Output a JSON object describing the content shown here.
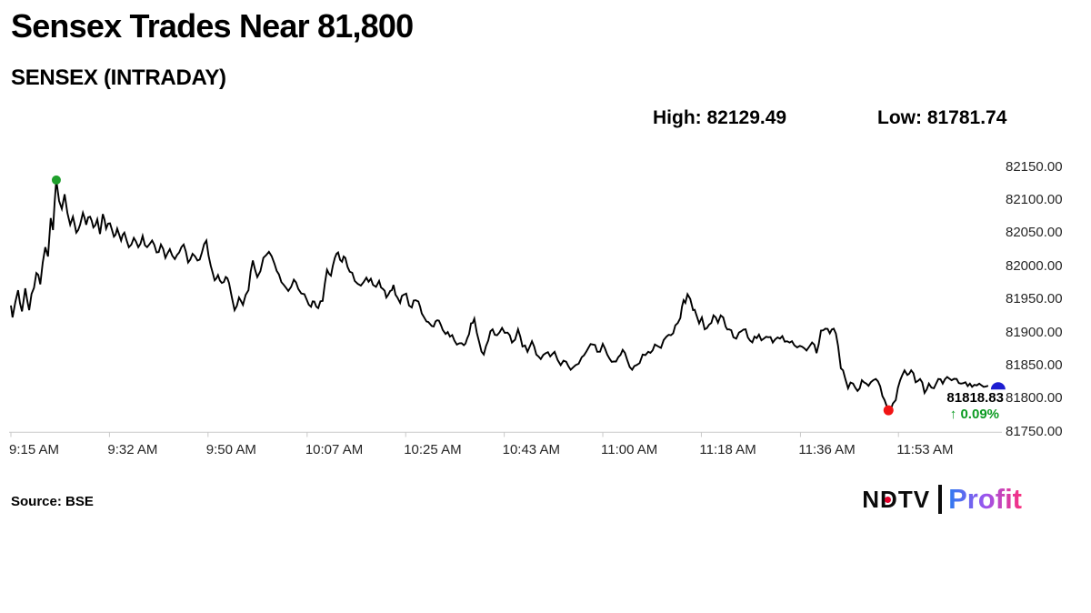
{
  "title": "Sensex Trades Near 81,800",
  "subtitle": "SENSEX (INTRADAY)",
  "stats": {
    "high_label": "High:",
    "high_value": "82129.49",
    "low_label": "Low:",
    "low_value": "81781.74"
  },
  "chart_data": {
    "type": "line",
    "title": "SENSEX (INTRADAY)",
    "series_name": "SENSEX",
    "line_color": "#000000",
    "axis_color": "#c9c9c9",
    "grid": false,
    "x_axis": {
      "ticks": [
        "9:15 AM",
        "9:32 AM",
        "9:50 AM",
        "10:07 AM",
        "10:25 AM",
        "10:43 AM",
        "11:00 AM",
        "11:18 AM",
        "11:36 AM",
        "11:53 AM"
      ],
      "tick_minutes": [
        0,
        17.8,
        35.6,
        53.5,
        71.3,
        89.1,
        106.9,
        124.7,
        142.6,
        160.3
      ],
      "minutes_domain": [
        0,
        176.5
      ]
    },
    "y_axis": {
      "ticks": [
        82150,
        82100,
        82050,
        82000,
        81950,
        81900,
        81850,
        81800,
        81750
      ],
      "min": 81750,
      "max": 82150,
      "decimals": 2
    },
    "high": {
      "value": 82129.49,
      "minute": 8.2
    },
    "low": {
      "value": 81781.74,
      "minute": 158.5
    },
    "last": {
      "value": 81818.83,
      "minute": 176.5,
      "label": "81818.83",
      "change": "↑ 0.09%"
    },
    "marker_colors": {
      "high": "#1fa02c",
      "low": "#f11414",
      "last": "#1d1dd1"
    },
    "change_color": "#0c9b22",
    "points": [
      [
        0,
        81940
      ],
      [
        0.3,
        81922
      ],
      [
        1.3,
        81963
      ],
      [
        2,
        81931
      ],
      [
        2.6,
        81966
      ],
      [
        3.3,
        81933
      ],
      [
        4.6,
        81989
      ],
      [
        5.3,
        81972
      ],
      [
        6.2,
        82028
      ],
      [
        6.7,
        82014
      ],
      [
        7.2,
        82072
      ],
      [
        7.6,
        82054
      ],
      [
        7.9,
        82096
      ],
      [
        8.2,
        82129.49
      ],
      [
        8.7,
        82098
      ],
      [
        9.2,
        82086
      ],
      [
        9.7,
        82108
      ],
      [
        10.2,
        82080
      ],
      [
        10.7,
        82062
      ],
      [
        11.2,
        82074
      ],
      [
        11.8,
        82050
      ],
      [
        12.5,
        82062
      ],
      [
        13,
        82080
      ],
      [
        13.6,
        82062
      ],
      [
        14.3,
        82074
      ],
      [
        14.9,
        82058
      ],
      [
        15.6,
        82070
      ],
      [
        16.1,
        82048
      ],
      [
        16.6,
        82078
      ],
      [
        17.2,
        82056
      ],
      [
        17.9,
        82064
      ],
      [
        18.6,
        82044
      ],
      [
        19.2,
        82056
      ],
      [
        19.9,
        82038
      ],
      [
        20.5,
        82050
      ],
      [
        21.3,
        82028
      ],
      [
        22.2,
        82042
      ],
      [
        23,
        82028
      ],
      [
        23.8,
        82045
      ],
      [
        24.6,
        82028
      ],
      [
        25.5,
        82038
      ],
      [
        26.3,
        82020
      ],
      [
        27.1,
        82032
      ],
      [
        27.9,
        82012
      ],
      [
        28.7,
        82025
      ],
      [
        29.6,
        82010
      ],
      [
        30.4,
        82020
      ],
      [
        31.2,
        82032
      ],
      [
        32,
        82005
      ],
      [
        32.8,
        82018
      ],
      [
        33.7,
        82008
      ],
      [
        34.5,
        82020
      ],
      [
        35.3,
        82038
      ],
      [
        36.1,
        82000
      ],
      [
        36.8,
        81978
      ],
      [
        37.4,
        81986
      ],
      [
        38.1,
        81974
      ],
      [
        38.8,
        81983
      ],
      [
        39.4,
        81974
      ],
      [
        40.4,
        81933
      ],
      [
        41.2,
        81952
      ],
      [
        41.9,
        81941
      ],
      [
        42.9,
        81963
      ],
      [
        43.7,
        82008
      ],
      [
        44.5,
        81983
      ],
      [
        45.6,
        82012
      ],
      [
        46.6,
        82021
      ],
      [
        47.6,
        82003
      ],
      [
        48.4,
        81987
      ],
      [
        49.3,
        81971
      ],
      [
        50.1,
        81962
      ],
      [
        51.1,
        81979
      ],
      [
        51.9,
        81965
      ],
      [
        53,
        81957
      ],
      [
        54.2,
        81938
      ],
      [
        54.8,
        81946
      ],
      [
        55.5,
        81936
      ],
      [
        56.3,
        81947
      ],
      [
        57.1,
        81994
      ],
      [
        57.8,
        81985
      ],
      [
        58.5,
        82012
      ],
      [
        59.1,
        82020
      ],
      [
        59.8,
        82006
      ],
      [
        60.4,
        82012
      ],
      [
        61.2,
        81991
      ],
      [
        62.1,
        81977
      ],
      [
        63.2,
        81970
      ],
      [
        64.2,
        81982
      ],
      [
        65.4,
        81971
      ],
      [
        66.5,
        81977
      ],
      [
        67.2,
        81965
      ],
      [
        67.8,
        81952
      ],
      [
        68.5,
        81962
      ],
      [
        69.1,
        81971
      ],
      [
        69.8,
        81952
      ],
      [
        70.3,
        81944
      ],
      [
        70.9,
        81956
      ],
      [
        71.4,
        81958
      ],
      [
        71.9,
        81940
      ],
      [
        72.4,
        81937
      ],
      [
        73.1,
        81948
      ],
      [
        73.6,
        81946
      ],
      [
        74.2,
        81928
      ],
      [
        74.7,
        81921
      ],
      [
        75.4,
        81915
      ],
      [
        76,
        81909
      ],
      [
        76.7,
        81916
      ],
      [
        77.3,
        81917
      ],
      [
        78,
        81903
      ],
      [
        78.5,
        81897
      ],
      [
        79.3,
        81893
      ],
      [
        80.1,
        81887
      ],
      [
        81,
        81883
      ],
      [
        81.8,
        81880
      ],
      [
        82.4,
        81890
      ],
      [
        83.1,
        81913
      ],
      [
        83.7,
        81920
      ],
      [
        84.6,
        81884
      ],
      [
        85.4,
        81866
      ],
      [
        86.2,
        81887
      ],
      [
        87,
        81904
      ],
      [
        87.8,
        81895
      ],
      [
        88.7,
        81906
      ],
      [
        89.7,
        81899
      ],
      [
        90.5,
        81884
      ],
      [
        91.6,
        81904
      ],
      [
        92.4,
        81878
      ],
      [
        93.3,
        81870
      ],
      [
        94.1,
        81886
      ],
      [
        94.9,
        81866
      ],
      [
        95.7,
        81859
      ],
      [
        96.6,
        81868
      ],
      [
        97.4,
        81863
      ],
      [
        98.2,
        81870
      ],
      [
        99.3,
        81850
      ],
      [
        100.3,
        81855
      ],
      [
        101.1,
        81843
      ],
      [
        102,
        81850
      ],
      [
        103.1,
        81862
      ],
      [
        104.3,
        81876
      ],
      [
        105.1,
        81881
      ],
      [
        105.9,
        81870
      ],
      [
        106.9,
        81882
      ],
      [
        107.7,
        81866
      ],
      [
        108.5,
        81855
      ],
      [
        109.7,
        81862
      ],
      [
        110.5,
        81873
      ],
      [
        111.3,
        81858
      ],
      [
        112.2,
        81843
      ],
      [
        113,
        81850
      ],
      [
        114.1,
        81866
      ],
      [
        115.1,
        81870
      ],
      [
        116.3,
        81881
      ],
      [
        117.4,
        81876
      ],
      [
        118.4,
        81893
      ],
      [
        119.2,
        81895
      ],
      [
        120,
        81910
      ],
      [
        120.9,
        81921
      ],
      [
        121.2,
        81938
      ],
      [
        121.5,
        81948
      ],
      [
        121.8,
        81944
      ],
      [
        122.2,
        81957
      ],
      [
        122.7,
        81950
      ],
      [
        123.2,
        81933
      ],
      [
        123.8,
        81926
      ],
      [
        124.3,
        81913
      ],
      [
        124.8,
        81922
      ],
      [
        125.3,
        81904
      ],
      [
        126.1,
        81911
      ],
      [
        126.9,
        81925
      ],
      [
        127.7,
        81914
      ],
      [
        128.2,
        81925
      ],
      [
        129.1,
        81908
      ],
      [
        129.7,
        81904
      ],
      [
        130.5,
        81892
      ],
      [
        131.5,
        81899
      ],
      [
        132.7,
        81904
      ],
      [
        133.5,
        81887
      ],
      [
        134.3,
        81893
      ],
      [
        135.1,
        81896
      ],
      [
        136,
        81890
      ],
      [
        136.8,
        81892
      ],
      [
        137.6,
        81884
      ],
      [
        138.9,
        81890
      ],
      [
        140.2,
        81886
      ],
      [
        141.5,
        81880
      ],
      [
        142.5,
        81879
      ],
      [
        143.7,
        81872
      ],
      [
        144.7,
        81884
      ],
      [
        145.5,
        81868
      ],
      [
        146.3,
        81902
      ],
      [
        147.1,
        81905
      ],
      [
        147.9,
        81898
      ],
      [
        148.6,
        81905
      ],
      [
        149.4,
        81879
      ],
      [
        149.9,
        81845
      ],
      [
        150.7,
        81829
      ],
      [
        151.2,
        81815
      ],
      [
        152.1,
        81822
      ],
      [
        152.9,
        81811
      ],
      [
        153.7,
        81827
      ],
      [
        154.5,
        81822
      ],
      [
        155.3,
        81824
      ],
      [
        156.2,
        81829
      ],
      [
        157,
        81818
      ],
      [
        157.8,
        81797
      ],
      [
        158.5,
        81781.74
      ],
      [
        159.3,
        81792
      ],
      [
        159.8,
        81797
      ],
      [
        160.6,
        81827
      ],
      [
        161.4,
        81842
      ],
      [
        161.9,
        81835
      ],
      [
        162.6,
        81842
      ],
      [
        163.4,
        81824
      ],
      [
        164.2,
        81829
      ],
      [
        165,
        81808
      ],
      [
        165.8,
        81822
      ],
      [
        166.7,
        81815
      ],
      [
        167.5,
        81829
      ],
      [
        168.3,
        81822
      ],
      [
        169.1,
        81832
      ],
      [
        169.9,
        81827
      ],
      [
        170.8,
        81829
      ],
      [
        171.6,
        81822
      ],
      [
        172.4,
        81824
      ],
      [
        173.2,
        81822
      ],
      [
        174,
        81820
      ],
      [
        174.9,
        81822
      ],
      [
        175.7,
        81817
      ],
      [
        176.5,
        81818.83
      ]
    ]
  },
  "footer": {
    "source": "Source: BSE"
  },
  "logo": {
    "ndtv_n": "N",
    "ndtv_d": "D",
    "ndtv_tv": "TV",
    "profit": "Profit",
    "dot_color": "#e4002b",
    "profit_gradient": [
      "#2e7bf0",
      "#9a55ee",
      "#fb2e7d"
    ]
  }
}
